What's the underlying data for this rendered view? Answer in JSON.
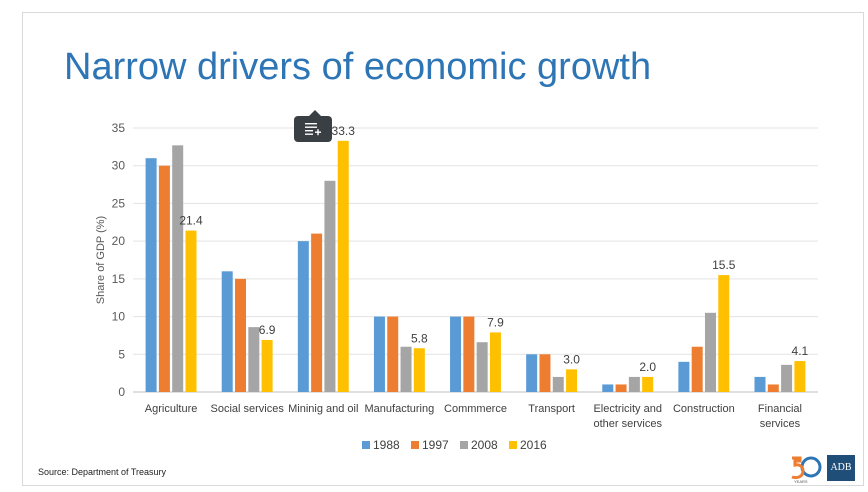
{
  "slide": {
    "title": "Narrow drivers of economic growth",
    "source": "Source: Department of Treasury",
    "logo": {
      "text": "ADB",
      "anniversary": "50",
      "anniversary_sub": "YEARS"
    }
  },
  "toolbar": {
    "icon": "list-add-icon"
  },
  "colors": {
    "1988": "#5b9bd5",
    "1997": "#ed7d31",
    "2008": "#a5a5a5",
    "2016": "#ffc000",
    "title": "#2e75b6"
  },
  "chart_data": {
    "type": "bar",
    "title": "",
    "xlabel": "",
    "ylabel": "Share of GDP (%)",
    "ylim": [
      0,
      35
    ],
    "yticks": [
      0,
      5,
      10,
      15,
      20,
      25,
      30,
      35
    ],
    "grid": true,
    "legend_position": "bottom",
    "categories": [
      [
        "Agriculture"
      ],
      [
        "Social services"
      ],
      [
        "Mininig and oil"
      ],
      [
        "Manufacturing"
      ],
      [
        "Commmerce"
      ],
      [
        "Transport"
      ],
      [
        "Electricity and",
        "other services"
      ],
      [
        "Construction"
      ],
      [
        "Financial",
        "services"
      ]
    ],
    "series": [
      {
        "name": "1988",
        "values": [
          31,
          16,
          20,
          10,
          10,
          5,
          1,
          4,
          2
        ]
      },
      {
        "name": "1997",
        "values": [
          30,
          15,
          21,
          10,
          10,
          5,
          1,
          6,
          1
        ]
      },
      {
        "name": "2008",
        "values": [
          32.7,
          8.6,
          28,
          6,
          6.6,
          2,
          2,
          10.5,
          3.6
        ]
      },
      {
        "name": "2016",
        "values": [
          21.4,
          6.9,
          33.3,
          5.8,
          7.9,
          3.0,
          2.0,
          15.5,
          4.1
        ]
      }
    ],
    "data_labels": [
      "21.4",
      "6.9",
      "33.3",
      "5.8",
      "7.9",
      "3.0",
      "2.0",
      "15.5",
      "4.1"
    ]
  }
}
